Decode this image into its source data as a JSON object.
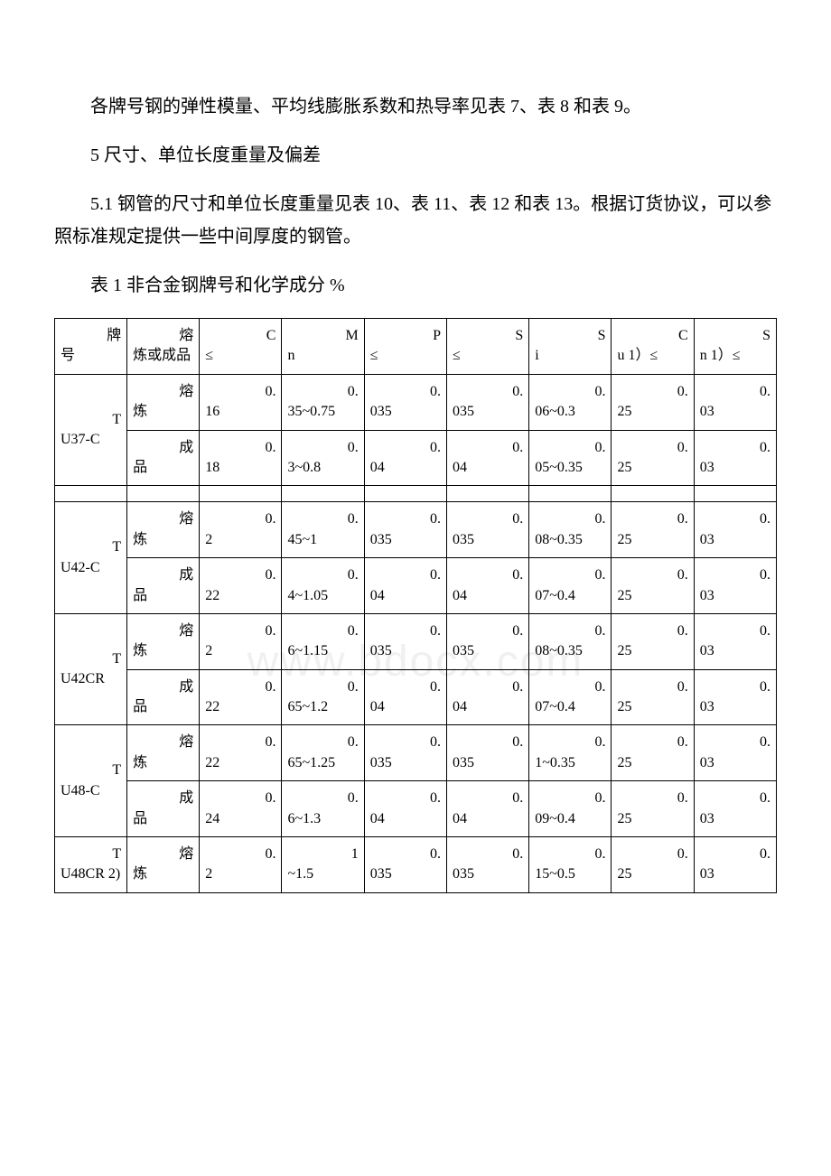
{
  "watermark": "www.bdocx.com",
  "paragraphs": {
    "p1": "各牌号钢的弹性模量、平均线膨胀系数和热导率见表 7、表 8 和表 9。",
    "p2_title": "5 尺寸、单位长度重量及偏差",
    "p3": "5.1 钢管的尺寸和单位长度重量见表 10、表 11、表 12 和表 13。根据订货协议，可以参照标准规定提供一些中间厚度的钢管。",
    "p4_title": "表 1 非合金钢牌号和化学成分  %"
  },
  "table1": {
    "header": {
      "grade_pre": "牌",
      "grade_after": "号",
      "type_pre": "熔",
      "type_after": "炼或成品",
      "c_pre": "C",
      "c_after": "≤",
      "mn_pre": "M",
      "mn_after": "n",
      "p_pre": "P",
      "p_after": "≤",
      "s_pre": "S",
      "s_after": "≤",
      "si_pre": "S",
      "si_after": "i",
      "cu_pre": "C",
      "cu_after": "u 1）≤",
      "sn_pre": "S",
      "sn_after": "n 1）≤"
    },
    "rows": [
      {
        "grade_pre": "T",
        "grade_after": "U37-C",
        "subrows": [
          {
            "type_pre": "熔",
            "type_after": "炼",
            "c_pre": "0.",
            "c_after": "16",
            "mn_pre": "0.",
            "mn_after": "35~0.75",
            "p_pre": "0.",
            "p_after": "035",
            "s_pre": "0.",
            "s_after": "035",
            "si_pre": "0.",
            "si_after": "06~0.3",
            "cu_pre": "0.",
            "cu_after": "25",
            "sn_pre": "0.",
            "sn_after": "03"
          },
          {
            "type_pre": "成",
            "type_after": "品",
            "c_pre": "0.",
            "c_after": "18",
            "mn_pre": "0.",
            "mn_after": "3~0.8",
            "p_pre": "0.",
            "p_after": "04",
            "s_pre": "0.",
            "s_after": "04",
            "si_pre": "0.",
            "si_after": "05~0.35",
            "cu_pre": "0.",
            "cu_after": "25",
            "sn_pre": "0.",
            "sn_after": "03"
          }
        ]
      },
      {
        "grade_pre": "T",
        "grade_after": "U42-C",
        "subrows": [
          {
            "type_pre": "熔",
            "type_after": "炼",
            "c_pre": "0.",
            "c_after": "2",
            "mn_pre": "0.",
            "mn_after": "45~1",
            "p_pre": "0.",
            "p_after": "035",
            "s_pre": "0.",
            "s_after": "035",
            "si_pre": "0.",
            "si_after": "08~0.35",
            "cu_pre": "0.",
            "cu_after": "25",
            "sn_pre": "0.",
            "sn_after": "03"
          },
          {
            "type_pre": "成",
            "type_after": "品",
            "c_pre": "0.",
            "c_after": "22",
            "mn_pre": "0.",
            "mn_after": "4~1.05",
            "p_pre": "0.",
            "p_after": "04",
            "s_pre": "0.",
            "s_after": "04",
            "si_pre": "0.",
            "si_after": "07~0.4",
            "cu_pre": "0.",
            "cu_after": "25",
            "sn_pre": "0.",
            "sn_after": "03"
          }
        ]
      },
      {
        "grade_pre": "T",
        "grade_after": "U42CR",
        "subrows": [
          {
            "type_pre": "熔",
            "type_after": "炼",
            "c_pre": "0.",
            "c_after": "2",
            "mn_pre": "0.",
            "mn_after": "6~1.15",
            "p_pre": "0.",
            "p_after": "035",
            "s_pre": "0.",
            "s_after": "035",
            "si_pre": "0.",
            "si_after": "08~0.35",
            "cu_pre": "0.",
            "cu_after": "25",
            "sn_pre": "0.",
            "sn_after": "03"
          },
          {
            "type_pre": "成",
            "type_after": "品",
            "c_pre": "0.",
            "c_after": "22",
            "mn_pre": "0.",
            "mn_after": "65~1.2",
            "p_pre": "0.",
            "p_after": "04",
            "s_pre": "0.",
            "s_after": "04",
            "si_pre": "0.",
            "si_after": "07~0.4",
            "cu_pre": "0.",
            "cu_after": "25",
            "sn_pre": "0.",
            "sn_after": "03"
          }
        ]
      },
      {
        "grade_pre": "T",
        "grade_after": "U48-C",
        "subrows": [
          {
            "type_pre": "熔",
            "type_after": "炼",
            "c_pre": "0.",
            "c_after": "22",
            "mn_pre": "0.",
            "mn_after": "65~1.25",
            "p_pre": "0.",
            "p_after": "035",
            "s_pre": "0.",
            "s_after": "035",
            "si_pre": "0.",
            "si_after": "1~0.35",
            "cu_pre": "0.",
            "cu_after": "25",
            "sn_pre": "0.",
            "sn_after": "03"
          },
          {
            "type_pre": "成",
            "type_after": "品",
            "c_pre": "0.",
            "c_after": "24",
            "mn_pre": "0.",
            "mn_after": "6~1.3",
            "p_pre": "0.",
            "p_after": "04",
            "s_pre": "0.",
            "s_after": "04",
            "si_pre": "0.",
            "si_after": "09~0.4",
            "cu_pre": "0.",
            "cu_after": "25",
            "sn_pre": "0.",
            "sn_after": "03"
          }
        ]
      },
      {
        "grade_pre": "T",
        "grade_after": "U48CR 2)",
        "subrows": [
          {
            "type_pre": "熔",
            "type_after": "炼",
            "c_pre": "0.",
            "c_after": "2",
            "mn_pre": "1",
            "mn_after": "~1.5",
            "p_pre": "0.",
            "p_after": "035",
            "s_pre": "0.",
            "s_after": "035",
            "si_pre": "0.",
            "si_after": "15~0.5",
            "cu_pre": "0.",
            "cu_after": "25",
            "sn_pre": "0.",
            "sn_after": "03"
          }
        ]
      }
    ],
    "blank_after_row_index": 0
  }
}
